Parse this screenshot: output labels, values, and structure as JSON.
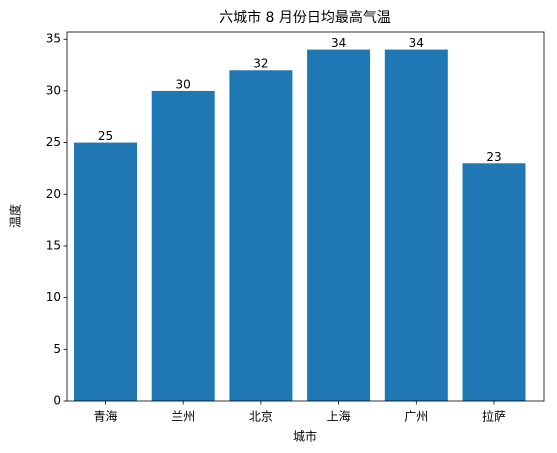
{
  "chart_data": {
    "type": "bar",
    "title": "六城市 8 月份日均最高气温",
    "x_label": "城市",
    "y_label": "温度",
    "categories": [
      "青海",
      "兰州",
      "北京",
      "上海",
      "广州",
      "拉萨"
    ],
    "values": [
      25,
      30,
      32,
      34,
      34,
      23
    ],
    "color": "#1f77b4",
    "ylim": [
      0,
      35.7
    ],
    "yticks": [
      0,
      5,
      10,
      15,
      20,
      25,
      30,
      35
    ],
    "grid": false
  }
}
